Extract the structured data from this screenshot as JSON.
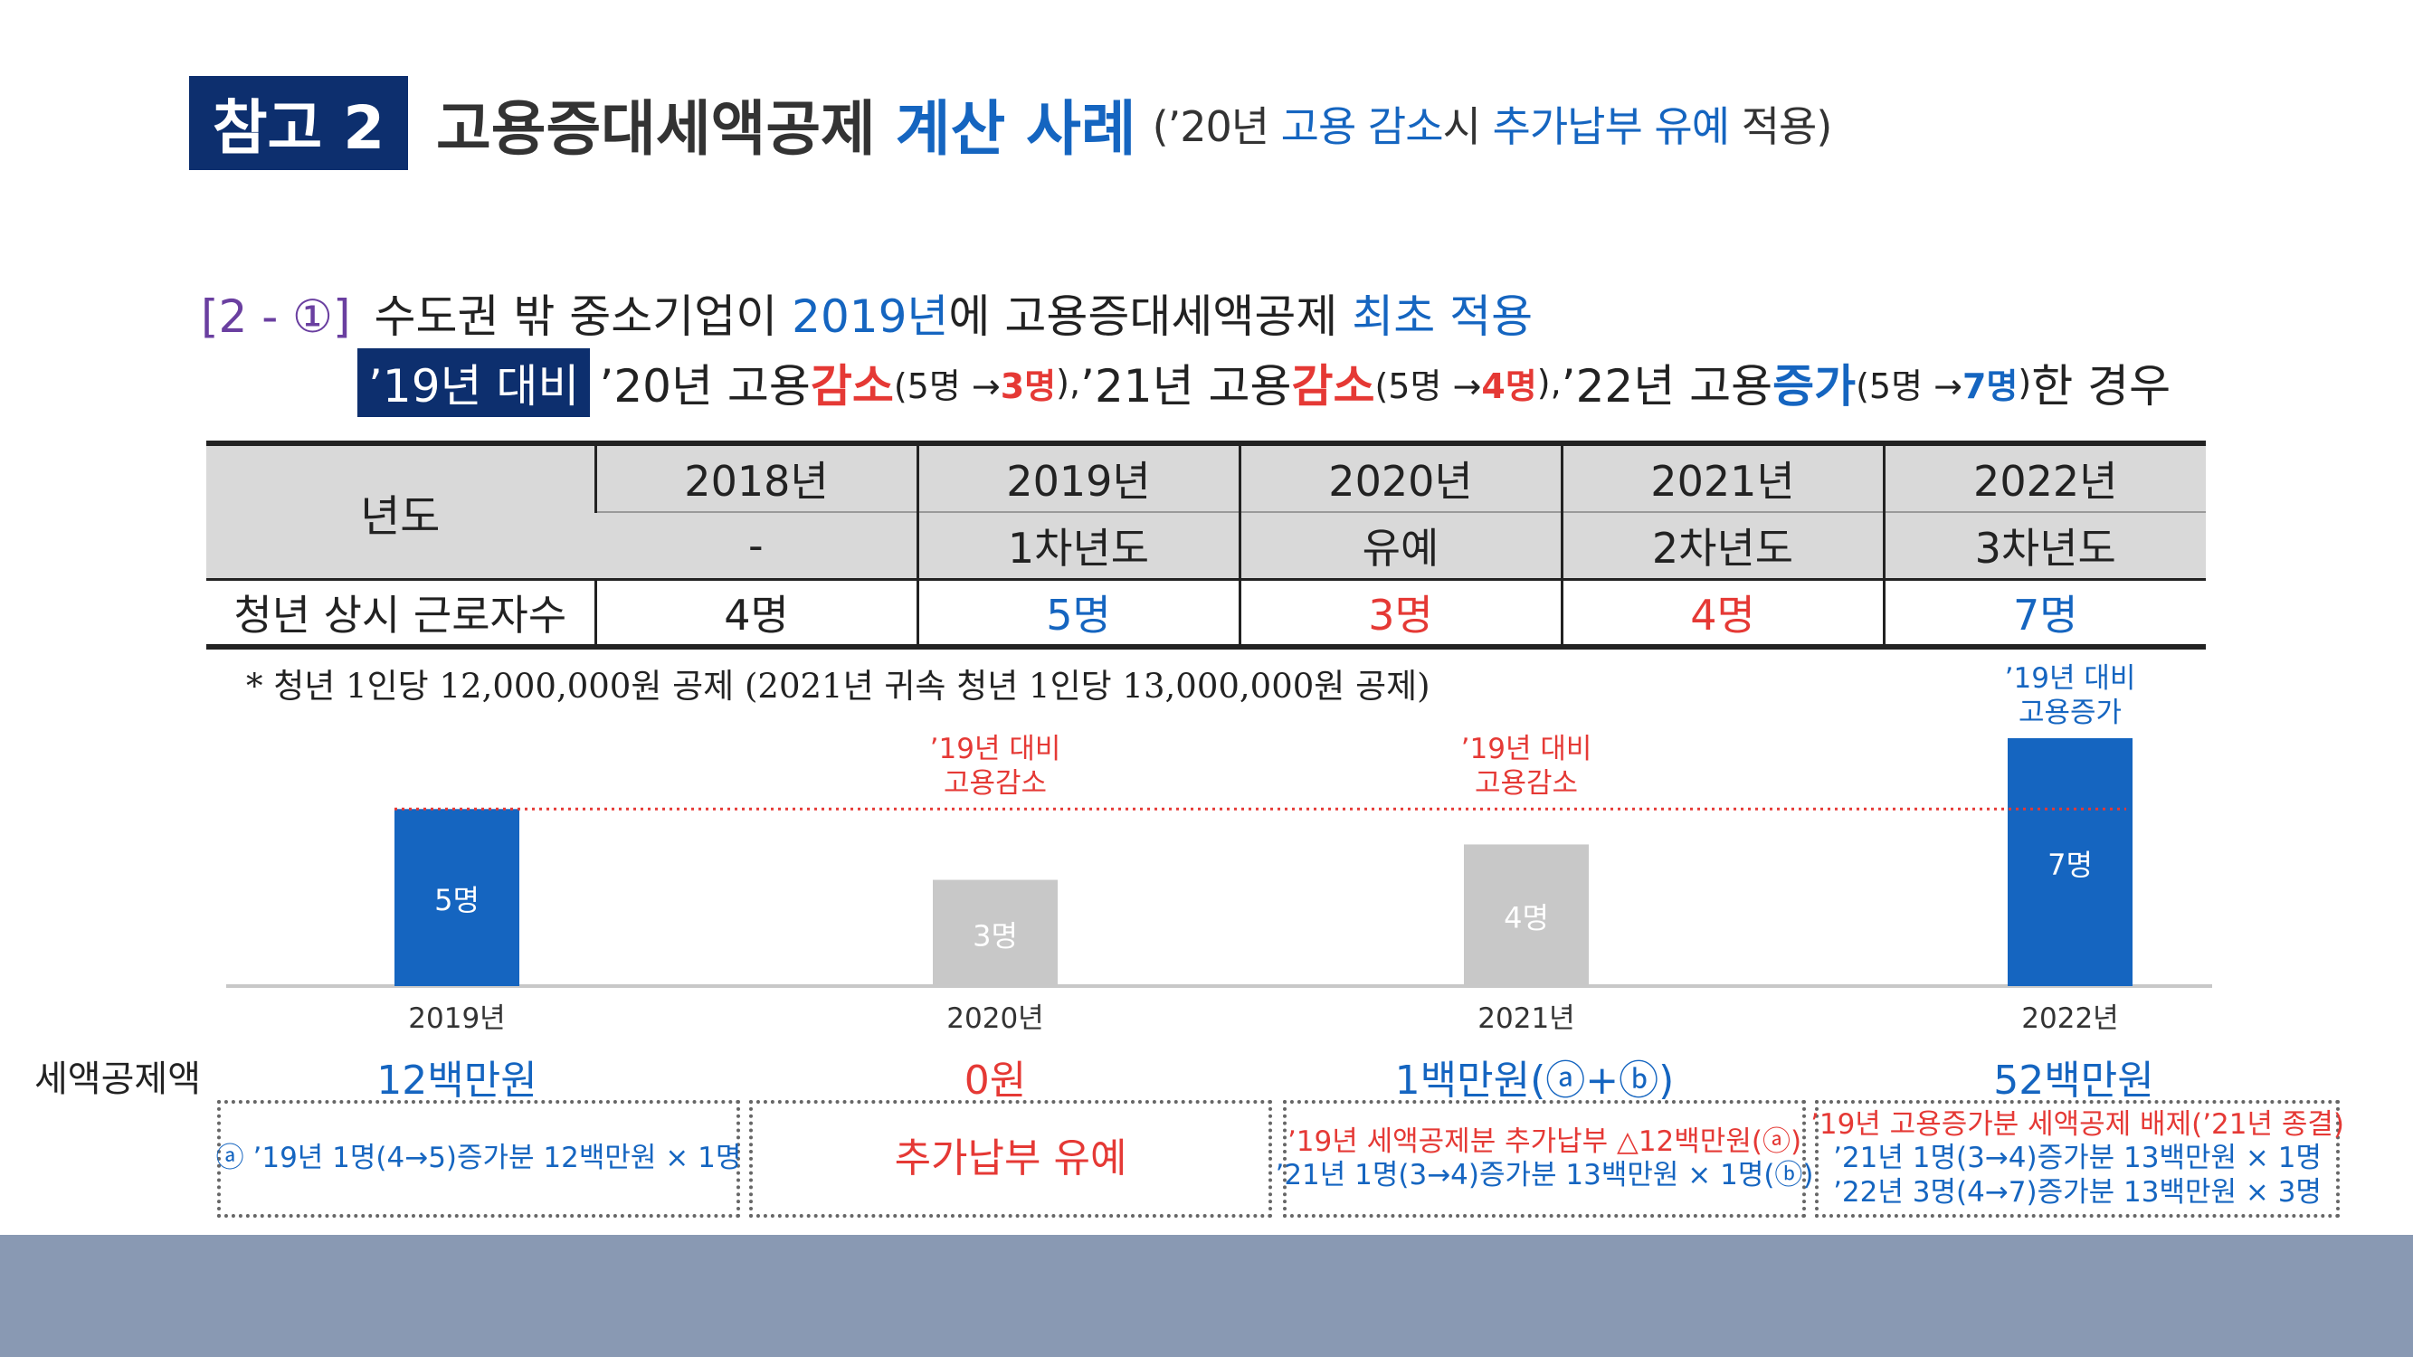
{
  "header": {
    "badge": "참고 2",
    "title_dark": "고용증대세액공제",
    "title_blue": "계산 사례",
    "sub_open": "(’20년 ",
    "sub_b1": "고용 감소",
    "sub_mid": "시 ",
    "sub_b2": "추가납부 유예",
    "sub_close": " 적용)"
  },
  "scenario": {
    "case_label": "[2 - ①]",
    "line1_a": "수도권 밖 중소기업이 ",
    "line1_year": "2019년",
    "line1_b": "에 고용증대세액공제 ",
    "line1_c": "최초 적용",
    "tag": "’19년 대비",
    "y20": " ’20년 고용 ",
    "dec1": "감소",
    "p20a": "(5명 → ",
    "p20b": "3명",
    "p20c": "), ",
    "y21": "’21년 고용 ",
    "dec2": "감소",
    "p21a": "(5명 → ",
    "p21b": "4명",
    "p21c": "), ",
    "y22": "’22년 고용 ",
    "inc": "증가",
    "p22a": "(5명 → ",
    "p22b": "7명",
    "p22c": ")",
    "end": "한 경우"
  },
  "table": {
    "row_header": "년도",
    "years": [
      "2018년",
      "2019년",
      "2020년",
      "2021년",
      "2022년"
    ],
    "periods": [
      "-",
      "1차년도",
      "유예",
      "2차년도",
      "3차년도"
    ],
    "workers_label": "청년 상시 근로자수",
    "workers": [
      "4명",
      "5명",
      "3명",
      "4명",
      "7명"
    ],
    "worker_colors": [
      "#222222",
      "#1565c0",
      "#e53935",
      "#e53935",
      "#1565c0"
    ]
  },
  "footnote": "* 청년 1인당 12,000,000원 공제 (2021년 귀속 청년 1인당 13,000,000원 공제)",
  "chart_data": {
    "type": "bar",
    "categories": [
      "2019년",
      "2020년",
      "2021년",
      "2022년"
    ],
    "values": [
      5,
      3,
      4,
      7
    ],
    "value_labels": [
      "5명",
      "3명",
      "4명",
      "7명"
    ],
    "bar_colors": [
      "#1565c0",
      "#c8c8c8",
      "#c8c8c8",
      "#1565c0"
    ],
    "reference_line": {
      "value": 5,
      "color": "#e53935",
      "style": "dotted"
    },
    "annotations": [
      {
        "category": "2020년",
        "lines": [
          "’19년 대비",
          "고용감소"
        ],
        "color": "#e53935"
      },
      {
        "category": "2021년",
        "lines": [
          "’19년 대비",
          "고용감소"
        ],
        "color": "#e53935"
      },
      {
        "category": "2022년",
        "lines": [
          "’19년 대비",
          "고용증가"
        ],
        "color": "#1565c0"
      }
    ],
    "ylim": [
      0,
      7
    ],
    "grid": false
  },
  "amounts": {
    "label": "세액공제액",
    "values": [
      "12백만원",
      "0원",
      "1백만원(ⓐ+ⓑ)",
      "52백만원"
    ]
  },
  "boxes": [
    {
      "lines": [
        {
          "text": "ⓐ ’19년 1명(4→5)증가분 12백만원 × 1명",
          "color": "blue"
        }
      ]
    },
    {
      "lines": [
        {
          "text": "추가납부 유예",
          "color": "red",
          "big": true
        }
      ]
    },
    {
      "lines": [
        {
          "text": "’19년 세액공제분 추가납부 △12백만원(ⓐ)",
          "color": "red"
        },
        {
          "text": "’21년 1명(3→4)증가분 13백만원 × 1명(ⓑ)",
          "color": "blue"
        }
      ]
    },
    {
      "lines": [
        {
          "text": "’19년 고용증가분 세액공제 배제(’21년 종결)",
          "color": "red"
        },
        {
          "text": "’21년 1명(3→4)증가분 13백만원 × 1명",
          "color": "blue"
        },
        {
          "text": "’22년 3명(4→7)증가분 13백만원 × 3명",
          "color": "blue"
        }
      ]
    }
  ]
}
